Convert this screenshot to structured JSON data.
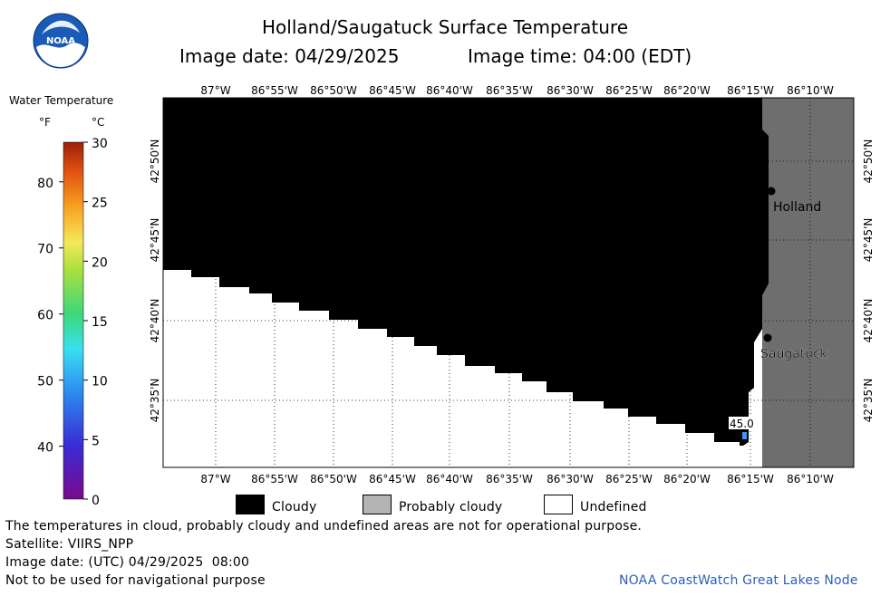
{
  "header": {
    "title": "Holland/Saugatuck Surface Temperature",
    "image_date_label": "Image date: 04/29/2025",
    "image_time_label": "Image time: 04:00 (EDT)",
    "logo_text": "NOAA"
  },
  "colorbar": {
    "title": "Water Temperature",
    "unit_f": "°F",
    "unit_c": "°C",
    "f_ticks": [
      "80",
      "70",
      "60",
      "50",
      "40"
    ],
    "c_ticks": [
      "30",
      "25",
      "20",
      "15",
      "10",
      "5",
      "0"
    ]
  },
  "map": {
    "lon_labels": [
      "87°W",
      "86°55'W",
      "86°50'W",
      "86°45'W",
      "86°40'W",
      "86°35'W",
      "86°30'W",
      "86°25'W",
      "86°20'W",
      "86°15'W",
      "86°10'W"
    ],
    "lat_labels": [
      "42°50'N",
      "42°45'N",
      "42°40'N",
      "42°35'N"
    ],
    "places": [
      {
        "name": "Holland"
      },
      {
        "name": "Saugatuck"
      }
    ],
    "temp_label": "45.0",
    "colors": {
      "cloudy": "#000000",
      "probably_cloudy": "#6e6e6e",
      "undefined": "#ffffff",
      "water_45": "#3c96ff"
    }
  },
  "legend": {
    "cloudy": "Cloudy",
    "probably_cloudy": "Probably cloudy",
    "undefined": "Undefined"
  },
  "footer": {
    "line1": "The temperatures in cloud, probably cloudy and undefined areas are not for operational purpose.",
    "line2": "Satellite: VIIRS_NPP",
    "line3": "Image date: (UTC) 04/29/2025  08:00",
    "line4": "Not to be used for navigational purpose",
    "credit": "NOAA CoastWatch Great Lakes Node"
  }
}
